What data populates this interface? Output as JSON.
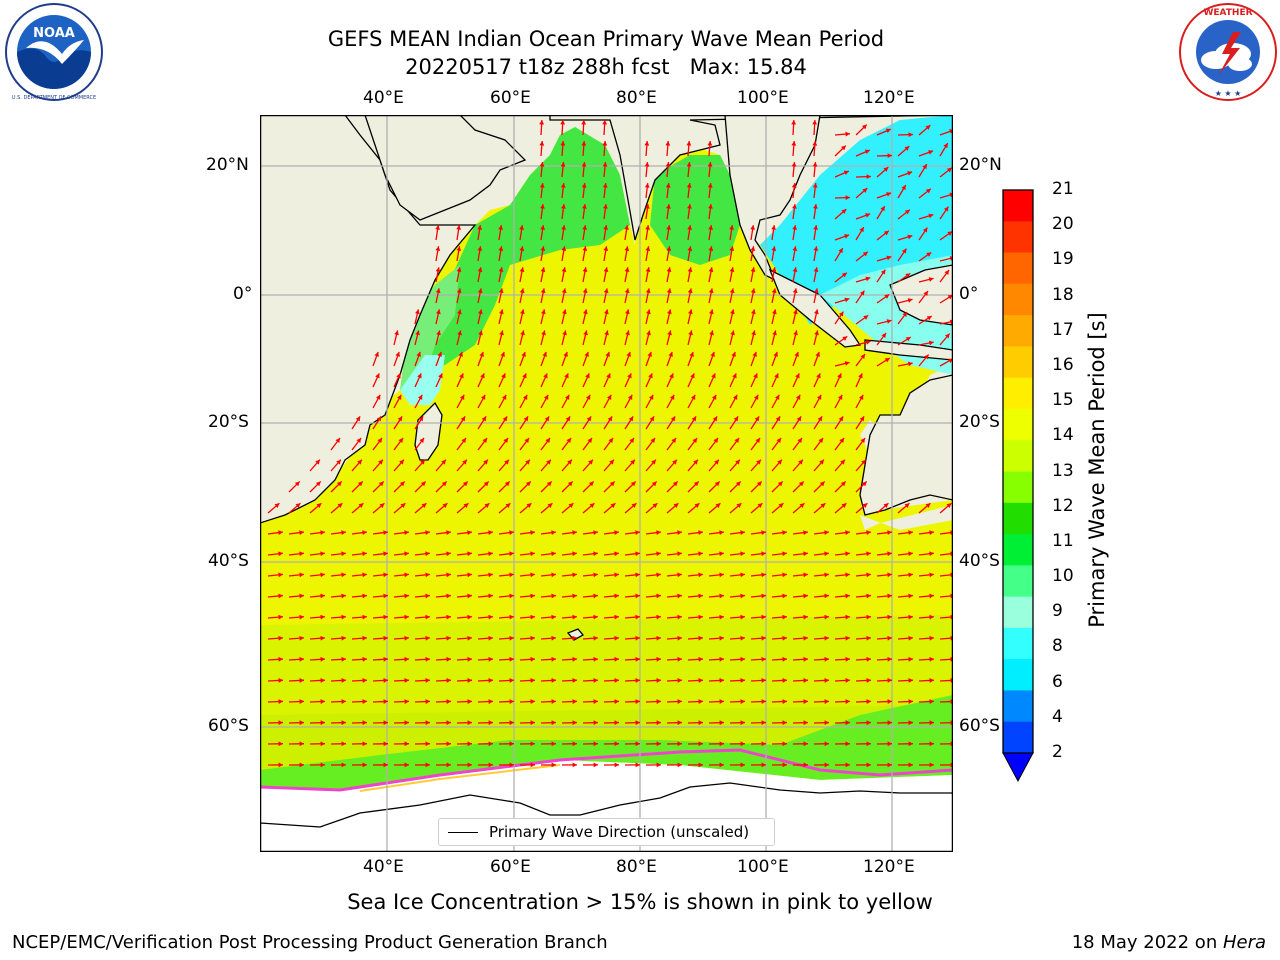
{
  "title": {
    "line1": "GEFS MEAN Indian Ocean Primary Wave Mean Period",
    "line2": "20220517 t18z 288h fcst   Max: 15.84"
  },
  "logos": {
    "left": {
      "name": "NOAA",
      "ring_text": "NATIONAL OCEANIC AND ATMOSPHERIC ADMINISTRATION · U.S. DEPARTMENT OF COMMERCE"
    },
    "right": {
      "name": "National Weather Service",
      "ring_text": "NATIONAL WEATHER SERVICE"
    }
  },
  "map": {
    "projection": "cylindrical",
    "lon_ticks_top": [
      "40°E",
      "60°E",
      "80°E",
      "100°E",
      "120°E"
    ],
    "lon_ticks_bottom": [
      "40°E",
      "60°E",
      "80°E",
      "100°E",
      "120°E"
    ],
    "lat_ticks_left": [
      "20°N",
      "0°",
      "20°S",
      "40°S",
      "60°S"
    ],
    "lat_ticks_right": [
      "20°N",
      "0°",
      "20°S",
      "40°S",
      "60°S"
    ],
    "land_color": "#efefdf",
    "grid_color": "#b0b0b0",
    "arrow_color": "#ff0000",
    "legend_label": "Primary Wave Direction (unscaled)"
  },
  "colorbar": {
    "title": "Primary Wave Mean Period [s]",
    "ticks": [
      "21",
      "20",
      "19",
      "18",
      "17",
      "16",
      "15",
      "14",
      "13",
      "12",
      "11",
      "10",
      "9",
      "8",
      "6",
      "4",
      "2"
    ],
    "colors_top_to_bottom": [
      "#ff0000",
      "#ff3300",
      "#ff6600",
      "#ff8800",
      "#ffaa00",
      "#ffcc00",
      "#ffee00",
      "#eeff00",
      "#ccff00",
      "#88ff00",
      "#22dd00",
      "#00ee33",
      "#44ff88",
      "#99ffdd",
      "#33ffff",
      "#00eeff",
      "#0088ff",
      "#0044ff"
    ],
    "extend": "min"
  },
  "bottom_note": "Sea Ice Concentration > 15% is shown in pink to yellow",
  "footer": {
    "left": "NCEP/EMC/Verification Post Processing Product Generation Branch",
    "right_prefix": "18 May 2022 on ",
    "right_machine": "Hera"
  }
}
